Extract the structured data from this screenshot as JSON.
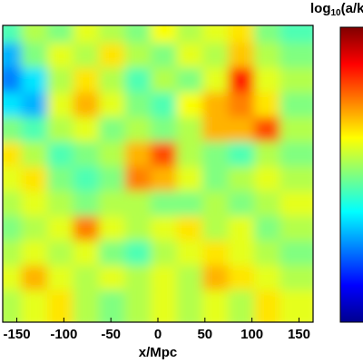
{
  "chart_data": {
    "type": "contour",
    "x_label": "x/Mpc",
    "colorbar_label": [
      "log",
      "10",
      "(a/km)"
    ],
    "xlim": [
      -165,
      165
    ],
    "xticks": [
      -150,
      -100,
      -50,
      0,
      50,
      100,
      150
    ],
    "zlim": [
      0,
      1
    ],
    "z": [
      [
        0.45,
        0.55,
        0.5,
        0.6,
        0.55,
        0.5,
        0.62,
        0.55,
        0.6,
        0.65,
        0.5,
        0.45
      ],
      [
        0.3,
        0.5,
        0.6,
        0.55,
        0.65,
        0.55,
        0.5,
        0.6,
        0.55,
        0.68,
        0.55,
        0.5
      ],
      [
        0.25,
        0.35,
        0.55,
        0.65,
        0.55,
        0.45,
        0.55,
        0.5,
        0.6,
        0.85,
        0.6,
        0.55
      ],
      [
        0.35,
        0.3,
        0.6,
        0.7,
        0.6,
        0.5,
        0.45,
        0.62,
        0.7,
        0.75,
        0.65,
        0.5
      ],
      [
        0.5,
        0.45,
        0.55,
        0.6,
        0.5,
        0.55,
        0.5,
        0.55,
        0.7,
        0.7,
        0.8,
        0.55
      ],
      [
        0.65,
        0.55,
        0.45,
        0.5,
        0.55,
        0.7,
        0.8,
        0.55,
        0.5,
        0.45,
        0.55,
        0.5
      ],
      [
        0.6,
        0.65,
        0.5,
        0.45,
        0.5,
        0.75,
        0.7,
        0.6,
        0.5,
        0.55,
        0.6,
        0.55
      ],
      [
        0.55,
        0.6,
        0.55,
        0.5,
        0.55,
        0.55,
        0.5,
        0.5,
        0.55,
        0.5,
        0.55,
        0.6
      ],
      [
        0.5,
        0.55,
        0.6,
        0.75,
        0.6,
        0.55,
        0.6,
        0.65,
        0.55,
        0.6,
        0.5,
        0.55
      ],
      [
        0.55,
        0.6,
        0.55,
        0.6,
        0.5,
        0.45,
        0.55,
        0.6,
        0.65,
        0.6,
        0.55,
        0.5
      ],
      [
        0.6,
        0.7,
        0.6,
        0.55,
        0.6,
        0.55,
        0.6,
        0.55,
        0.7,
        0.65,
        0.6,
        0.55
      ],
      [
        0.55,
        0.6,
        0.65,
        0.55,
        0.5,
        0.55,
        0.6,
        0.55,
        0.6,
        0.55,
        0.65,
        0.6
      ]
    ]
  }
}
